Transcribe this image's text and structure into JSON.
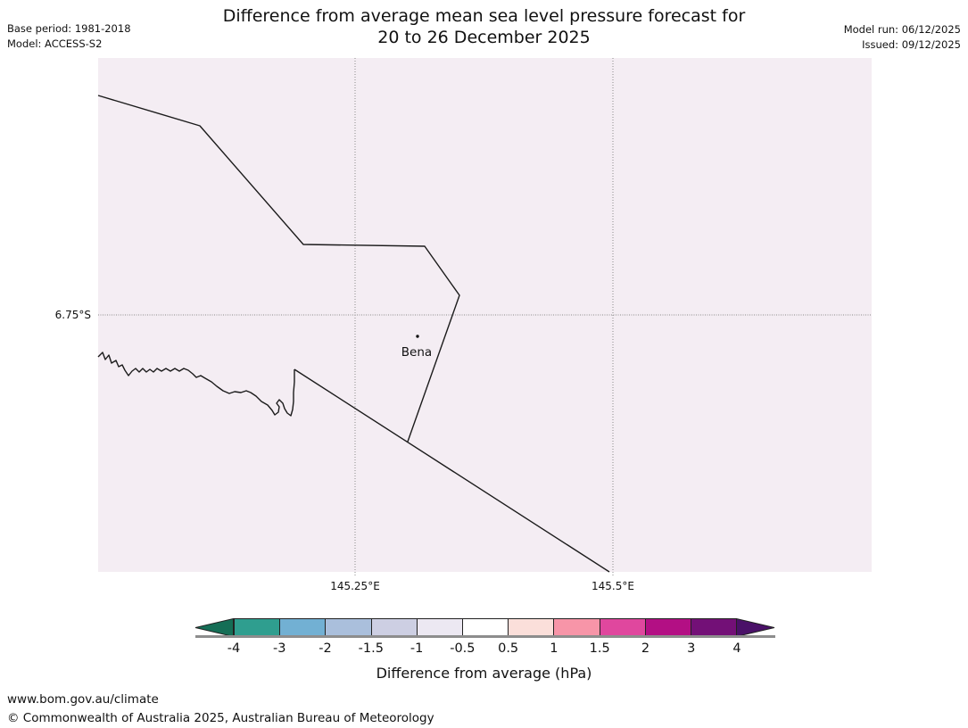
{
  "header": {
    "title_line1": "Difference from average mean sea level pressure forecast for",
    "title_line2": "20 to 26 December 2025",
    "base_period": "Base period: 1981-2018",
    "model": "Model: ACCESS-S2",
    "model_run": "Model run: 06/12/2025",
    "issued": "Issued: 09/12/2025"
  },
  "map": {
    "background_color": "#f4edf3",
    "place_label": "Bena",
    "lat_label": "6.75°S",
    "lon_label_1": "145.25°E",
    "lon_label_2": "145.5°E",
    "gridline_color": "#8a8a8a",
    "boundary_line_color": "#1b1b1b"
  },
  "colorbar": {
    "title": "Difference from average (hPa)",
    "tick_labels": [
      "-4",
      "-3",
      "-2",
      "-1.5",
      "-1",
      "-0.5",
      "0.5",
      "1",
      "1.5",
      "2",
      "3",
      "4"
    ],
    "segment_colors": [
      "#2f9e8f",
      "#72b0d3",
      "#aabfdc",
      "#cdcfe3",
      "#ece8f2",
      "#ffffff",
      "#fbdfda",
      "#f795a8",
      "#e0479e",
      "#b30f84",
      "#731077"
    ],
    "under_arrow_color": "#156e56",
    "over_arrow_color": "#4a1168"
  },
  "footer": {
    "url": "www.bom.gov.au/climate",
    "copyright": "© Commonwealth of Australia 2025, Australian Bureau of Meteorology"
  }
}
